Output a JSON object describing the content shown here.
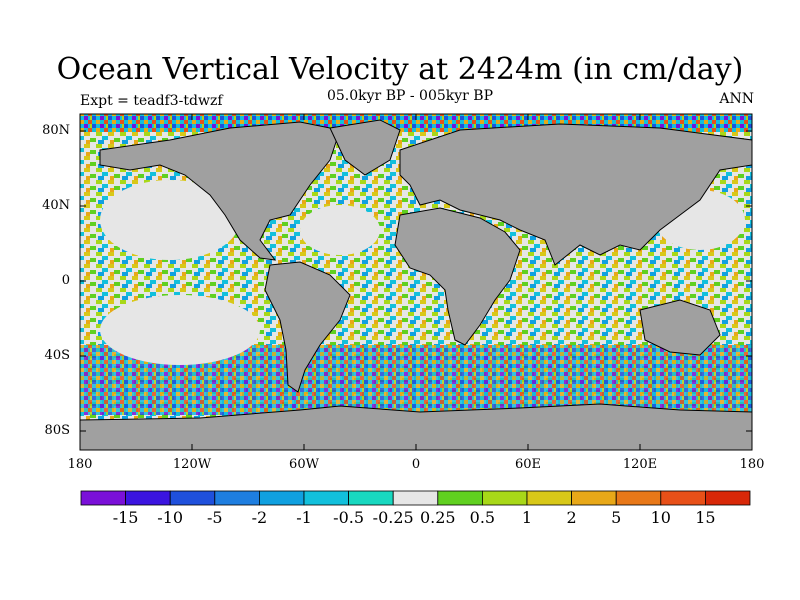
{
  "title": "Ocean Vertical Velocity at 2424m (in cm/day)",
  "experiment": "Expt = teadf3-tdwzf",
  "period": "05.0kyr BP - 005kyr BP",
  "season": "ANN",
  "lat_ticks": [
    "80N",
    "40N",
    "0",
    "40S",
    "80S"
  ],
  "lon_ticks": [
    "180",
    "120W",
    "60W",
    "0",
    "60E",
    "120E",
    "180"
  ],
  "colorbar": {
    "labels": [
      "-15",
      "-10",
      "-5",
      "-2",
      "-1",
      "-0.5",
      "-0.25",
      "0.25",
      "0.5",
      "1",
      "2",
      "5",
      "10",
      "15"
    ],
    "colors": [
      "#7a10d8",
      "#3b14e0",
      "#1f50dc",
      "#1e7ee0",
      "#10a0e0",
      "#12c0dc",
      "#18d8c0",
      "#e6e6e6",
      "#60d020",
      "#a8d818",
      "#d8c818",
      "#e8a818",
      "#e87818",
      "#e85018",
      "#d82808"
    ]
  },
  "colors": {
    "land": "#a0a0a0",
    "coast": "#000000"
  }
}
